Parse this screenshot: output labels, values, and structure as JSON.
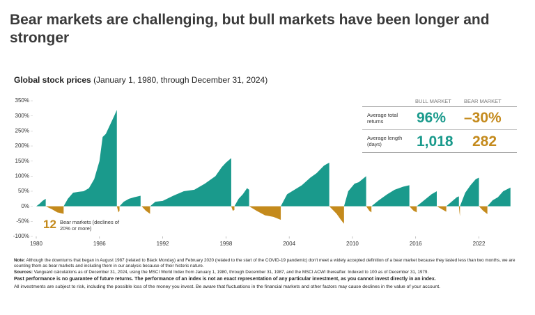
{
  "chart_data": {
    "type": "area",
    "title": "Bear markets are challenging, but bull markets have been longer and stronger",
    "subtitle_bold": "Global stock prices",
    "subtitle": "(January 1, 1980, through December 31, 2024)",
    "xlim": [
      1980,
      2025.6
    ],
    "xticks": [
      1980,
      1986,
      1992,
      1998,
      2004,
      2010,
      2016,
      2022
    ],
    "ylim": [
      -100,
      350
    ],
    "yticks": [
      {
        "value": 350,
        "label": "350%"
      },
      {
        "value": 300,
        "label": "300%"
      },
      {
        "value": 250,
        "label": "250%"
      },
      {
        "value": 200,
        "label": "200%"
      },
      {
        "value": 150,
        "label": "150%"
      },
      {
        "value": 100,
        "label": "100%"
      },
      {
        "value": 50,
        "label": "50%"
      },
      {
        "value": 0,
        "label": "0%"
      },
      {
        "value": -50,
        "label": "-50%"
      },
      {
        "value": -100,
        "label": "-100%"
      }
    ],
    "series": [
      {
        "name": "BULL MARKET",
        "color": "#1a9a8c",
        "x": [
          1980.0,
          1980.3,
          1980.6,
          1980.9,
          null,
          1982.6,
          1983.0,
          1983.5,
          1984.0,
          1984.5,
          1985.0,
          1985.5,
          1986.0,
          1986.3,
          1986.6,
          1987.0,
          1987.4,
          1987.65,
          null,
          1987.9,
          1988.3,
          1988.8,
          1989.3,
          1989.9,
          null,
          1990.8,
          1991.3,
          1992.0,
          1993.0,
          1994.0,
          1995.0,
          1996.0,
          1997.0,
          1997.6,
          1998.0,
          1998.5,
          null,
          1998.8,
          1999.2,
          1999.6,
          2000.0,
          2000.2,
          null,
          2003.2,
          2003.8,
          2004.5,
          2005.2,
          2006.0,
          2006.6,
          2007.3,
          2007.8,
          null,
          2009.2,
          2009.6,
          2010.2,
          2010.6,
          2011.3,
          null,
          2011.8,
          2012.5,
          2013.3,
          2014.0,
          2014.8,
          2015.4,
          null,
          2016.1,
          2016.8,
          2017.5,
          2018.0,
          null,
          2018.9,
          2019.4,
          2019.9,
          2020.1,
          null,
          2020.2,
          2020.7,
          2021.2,
          2021.7,
          2022.0,
          null,
          2022.8,
          2023.3,
          2023.8,
          2024.3,
          2024.99
        ],
        "values": [
          0,
          8,
          18,
          25,
          null,
          0,
          25,
          45,
          48,
          50,
          60,
          90,
          150,
          230,
          240,
          270,
          300,
          320,
          null,
          0,
          15,
          25,
          30,
          35,
          null,
          0,
          15,
          18,
          35,
          50,
          55,
          75,
          100,
          130,
          145,
          160,
          null,
          0,
          25,
          40,
          60,
          55,
          null,
          0,
          40,
          55,
          70,
          95,
          110,
          135,
          145,
          null,
          0,
          50,
          75,
          80,
          100,
          null,
          0,
          20,
          40,
          55,
          65,
          70,
          null,
          0,
          20,
          40,
          50,
          null,
          0,
          15,
          30,
          33,
          null,
          0,
          45,
          70,
          90,
          95,
          null,
          0,
          20,
          30,
          50,
          62
        ]
      },
      {
        "name": "BEAR MARKET",
        "color": "#c48a1c",
        "x": [
          1980.9,
          1981.5,
          1982.0,
          1982.6,
          null,
          1987.65,
          1987.8,
          1987.9,
          null,
          1990.0,
          1990.4,
          1990.8,
          null,
          1998.5,
          1998.65,
          1998.8,
          null,
          2000.2,
          2000.9,
          2001.7,
          2002.5,
          2003.2,
          null,
          2007.8,
          2008.5,
          2008.9,
          2009.2,
          null,
          2011.3,
          2011.6,
          2011.8,
          null,
          2015.4,
          2015.8,
          2016.1,
          null,
          2018.0,
          2018.5,
          2018.9,
          null,
          2020.1,
          2020.15,
          2020.2,
          null,
          2022.0,
          2022.4,
          2022.8
        ],
        "values": [
          0,
          -10,
          -20,
          -25,
          null,
          0,
          -20,
          -15,
          null,
          0,
          -15,
          -25,
          null,
          0,
          -15,
          -12,
          null,
          0,
          -15,
          -30,
          -35,
          -45,
          null,
          0,
          -25,
          -45,
          -58,
          null,
          0,
          -15,
          -20,
          null,
          0,
          -15,
          -20,
          null,
          0,
          -10,
          -18,
          null,
          0,
          -20,
          -33,
          null,
          0,
          -15,
          -26
        ]
      }
    ],
    "annotation_count": "12",
    "annotation": "Bear markets (declines of 20% or more)",
    "stats": [
      {
        "label": "Average total returns",
        "bull": "96%",
        "bear": "–30%"
      },
      {
        "label": "Average length (days)",
        "bull": "1,018",
        "bear": "282"
      }
    ]
  },
  "notes": [
    {
      "label": "Note:",
      "text": "Although the downturns that began in August 1987 (related to Black Monday) and February 2020 (related to the start of the COVID-19 pandemic) don't meet a widely accepted definition of a bear market because they lasted less than two months, we are counting them as bear markets and including them in our analysis because of their historic nature."
    },
    {
      "label": "Sources:",
      "text": "Vanguard calculations as of December 31, 2024, using the MSCI World Index from January 1, 1980, through December 31, 1987, and the MSCI ACWI thereafter. Indexed to 100 as of December 31, 1979."
    }
  ],
  "disclaimer_bold": "Past performance is no guarantee of future returns. The performance of an index is not an exact representation of any particular investment, as you cannot invest directly in an index.",
  "disclaimer": "All investments are subject to risk, including the possible loss of the money you invest. Be aware that fluctuations in the financial markets and other factors may cause declines in the value of your account."
}
